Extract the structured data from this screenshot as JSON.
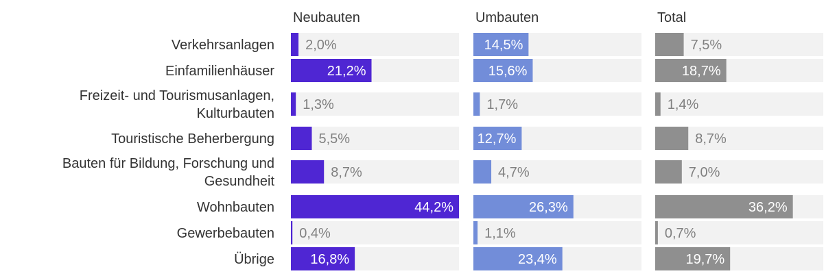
{
  "chart_data": {
    "type": "bar",
    "orientation": "horizontal",
    "layout": "small-multiples",
    "xlim": [
      0,
      44.2
    ],
    "categories": [
      [
        "Verkehrsanlagen"
      ],
      [
        "Einfamilienhäuser"
      ],
      [
        "Freizeit- und Tourismusanlagen,",
        "Kulturbauten"
      ],
      [
        "Touristische Beherbergung"
      ],
      [
        "Bauten für Bildung, Forschung und",
        "Gesundheit"
      ],
      [
        "Wohnbauten"
      ],
      [
        "Gewerbebauten"
      ],
      [
        "Übrige"
      ]
    ],
    "series": [
      {
        "name": "Neubauten",
        "color": "#4f26d3",
        "values": [
          2.0,
          21.2,
          1.3,
          5.5,
          8.7,
          44.2,
          0.4,
          16.8
        ],
        "labels": [
          "2,0%",
          "21,2%",
          "1,3%",
          "5,5%",
          "8,7%",
          "44,2%",
          "0,4%",
          "16,8%"
        ]
      },
      {
        "name": "Umbauten",
        "color": "#728dd9",
        "values": [
          14.5,
          15.6,
          1.7,
          12.7,
          4.7,
          26.3,
          1.1,
          23.4
        ],
        "labels": [
          "14,5%",
          "15,6%",
          "1,7%",
          "12,7%",
          "4,7%",
          "26,3%",
          "1,1%",
          "23,4%"
        ]
      },
      {
        "name": "Total",
        "color": "#8f8f8f",
        "values": [
          7.5,
          18.7,
          1.4,
          8.7,
          7.0,
          36.2,
          0.7,
          19.7
        ],
        "labels": [
          "7,5%",
          "18,7%",
          "1,4%",
          "8,7%",
          "7,0%",
          "36,2%",
          "0,7%",
          "19,7%"
        ]
      }
    ],
    "track_color": "#f2f2f2",
    "label_inside_color": "#ffffff",
    "label_outside_color": "#808080"
  }
}
